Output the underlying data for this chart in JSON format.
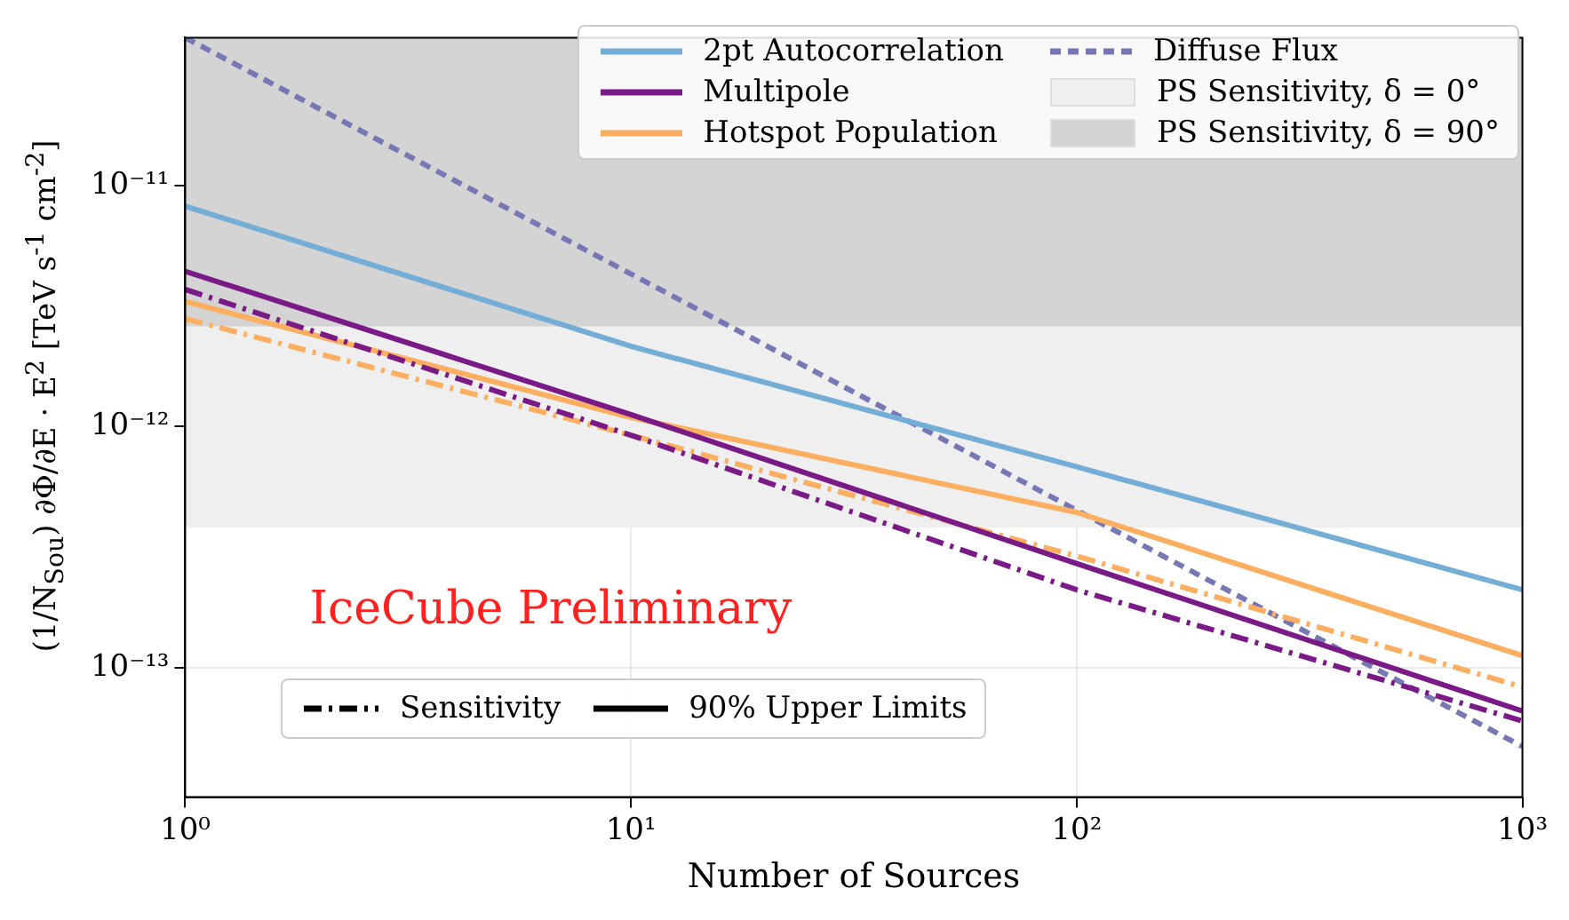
{
  "chart_data": {
    "type": "line",
    "xlabel": "Number of Sources",
    "ylabel": "(1/N$_{Sou}$) ∂Φ/∂E · E$^{2}$ [TeV s$^{-1}$ cm$^{-2}$]",
    "log": "xy",
    "grid": true,
    "legend": "top right",
    "marker": "none",
    "x": [
      1,
      10,
      100,
      1000
    ],
    "xlim": [
      1,
      1000
    ],
    "xticks": [
      {
        "value": 1,
        "label": "10⁰"
      },
      {
        "value": 10,
        "label": "10¹"
      },
      {
        "value": 100,
        "label": "10²"
      },
      {
        "value": 1000,
        "label": "10³"
      }
    ],
    "ylim": [
      2.9e-14,
      4.1e-11
    ],
    "yticks": [
      {
        "value": 1e-13,
        "label": "10⁻¹³"
      },
      {
        "value": 1e-12,
        "label": "10⁻¹²"
      },
      {
        "value": 1e-11,
        "label": "10⁻¹¹"
      }
    ],
    "bands": [
      {
        "axis": "y",
        "from": 3.8e-13,
        "to": 4.1e-11,
        "label": "PS Sensitivity, δ = 0°",
        "color": "#efefef"
      },
      {
        "axis": "y",
        "from": 2.6e-12,
        "to": 4.1e-11,
        "label": "PS Sensitivity, δ = 90°",
        "color": "#d4d4d4"
      }
    ],
    "series": [
      {
        "name": "2pt Autocorrelation",
        "color": "#74add6",
        "line_style": "solid",
        "values": [
          8.2e-12,
          2.15e-12,
          6.8e-13,
          2.1e-13
        ]
      },
      {
        "name": "Multipole",
        "color": "#7a1a87",
        "line_style": "solid",
        "values": [
          4.4e-12,
          1.12e-12,
          2.7e-13,
          6.6e-14
        ]
      },
      {
        "color": "#7a1a87",
        "line_style": "dashdot",
        "values": [
          3.7e-12,
          9.2e-13,
          2.1e-13,
          6e-14
        ]
      },
      {
        "name": "Hotspot Population",
        "color": "#fdae61",
        "line_style": "solid",
        "values": [
          3.3e-12,
          1.09e-12,
          4.4e-13,
          1.12e-13
        ]
      },
      {
        "color": "#fdae61",
        "line_style": "dashdot",
        "values": [
          2.8e-12,
          9.2e-13,
          2.9e-13,
          8.3e-14
        ]
      },
      {
        "name": "Diffuse Flux",
        "color": "#7777b5",
        "line_style": "dashed",
        "x": [
          1,
          1000
        ],
        "values": [
          4.1e-11,
          4.7e-14
        ]
      }
    ],
    "annotations": [
      "IceCube Preliminary",
      "Sensitivity",
      "90% Upper Limits"
    ]
  }
}
